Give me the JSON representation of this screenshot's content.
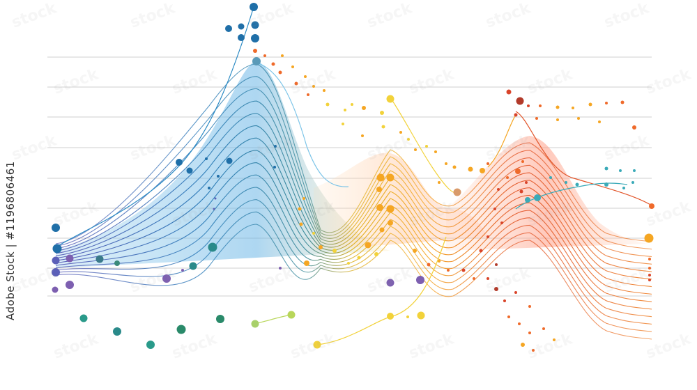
{
  "image": {
    "side_caption": "Adobe Stock | #1196806461",
    "palette": [
      "#1f6fa8",
      "#3a9fd6",
      "#2a8a8a",
      "#7d5fb0",
      "#a8d06a",
      "#f2d23a",
      "#f5a623",
      "#ef6a2a",
      "#d9442a",
      "#b23a2a"
    ],
    "watermark_word": "stock"
  }
}
